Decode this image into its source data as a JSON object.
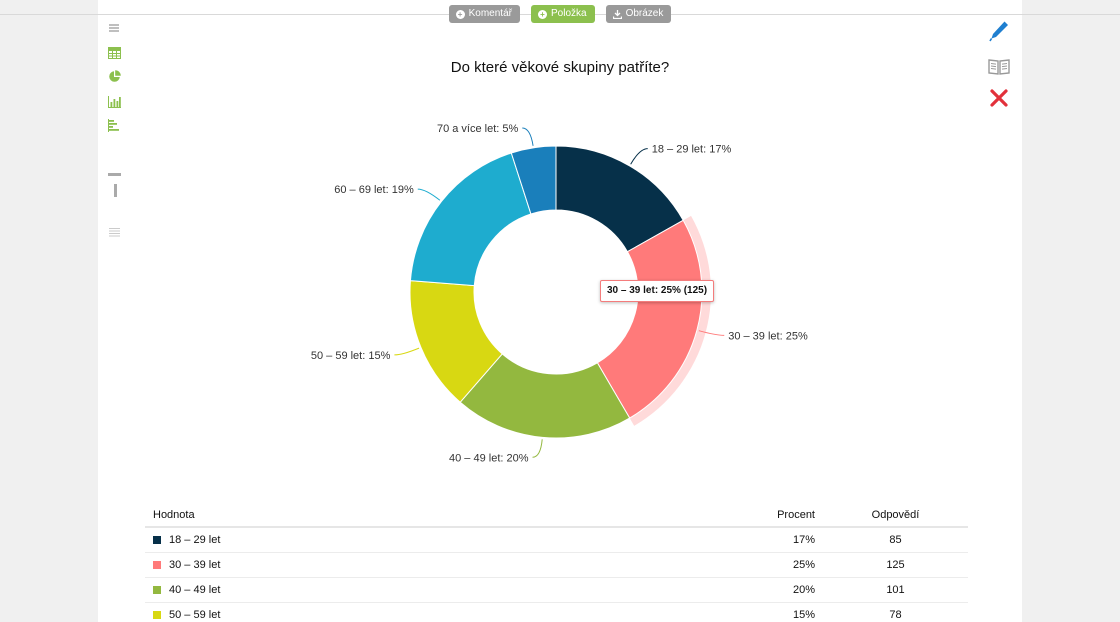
{
  "toolbar": {
    "comment_label": "Komentář",
    "item_label": "Položka",
    "image_label": "Obrázek"
  },
  "tooltip": {
    "text": "30 – 39 let: 25% (125)"
  },
  "table": {
    "headers": {
      "value": "Hodnota",
      "percent": "Procent",
      "answers": "Odpovědí"
    },
    "rows": [
      {
        "label": "18 – 29 let",
        "percent": "17%",
        "count": "85",
        "color": "#063049"
      },
      {
        "label": "30 – 39 let",
        "percent": "25%",
        "count": "125",
        "color": "#ff7a7a"
      },
      {
        "label": "40 – 49 let",
        "percent": "20%",
        "count": "101",
        "color": "#93b83f"
      },
      {
        "label": "50 – 59 let",
        "percent": "15%",
        "count": "78",
        "color": "#d8d812"
      }
    ]
  },
  "chart_data": {
    "type": "pie",
    "title": "Do které věkové skupiny patříte?",
    "donut": true,
    "highlighted": "30 – 39 let",
    "slices": [
      {
        "label": "18 – 29 let",
        "value": 17,
        "data_label": "18 – 29 let: 17%",
        "color": "#063049"
      },
      {
        "label": "30 – 39 let",
        "value": 25,
        "data_label": "30 – 39 let: 25%",
        "color": "#ff7a7a"
      },
      {
        "label": "40 – 49 let",
        "value": 20,
        "data_label": "40 – 49 let: 20%",
        "color": "#93b83f"
      },
      {
        "label": "50 – 59 let",
        "value": 15,
        "data_label": "50 – 59 let: 15%",
        "color": "#d8d812"
      },
      {
        "label": "60 – 69 let",
        "value": 19,
        "data_label": "60 – 69 let: 19%",
        "color": "#1eaccf"
      },
      {
        "label": "70 a více let",
        "value": 5,
        "data_label": "70 a více let: 5%",
        "color": "#1a7fbb"
      }
    ]
  }
}
